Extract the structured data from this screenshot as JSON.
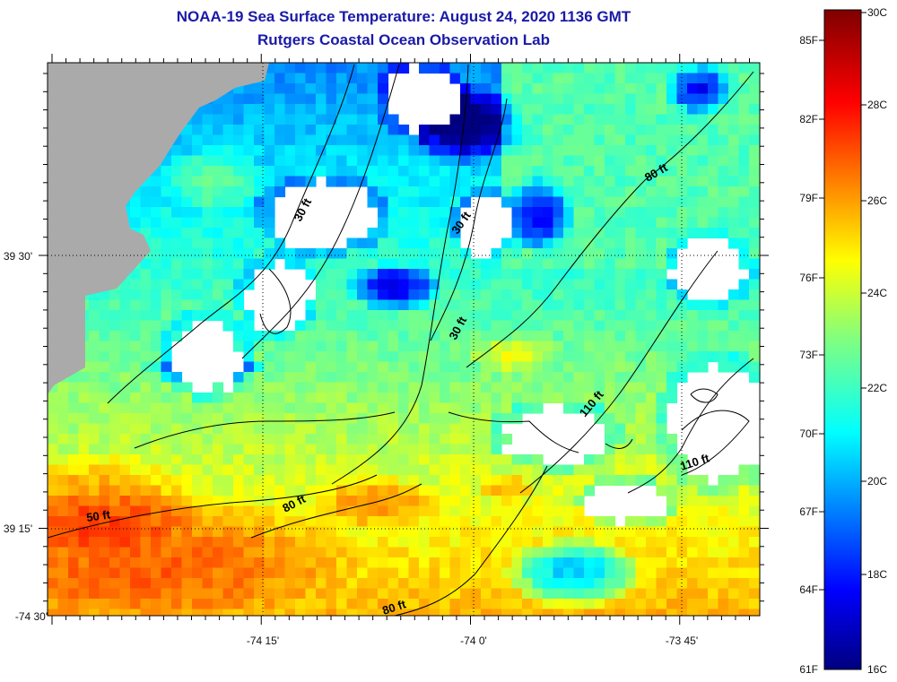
{
  "title_line1": "NOAA-19 Sea Surface Temperature:  August 24, 2020 1136 GMT",
  "title_line2": "Rutgers Coastal Ocean Observation Lab",
  "chart_data": {
    "type": "heatmap",
    "x_ticks": [
      "-74 30'",
      "-74 15'",
      "-74 0'",
      "-73 45'"
    ],
    "y_ticks": [
      "39 30'",
      "39 15'"
    ],
    "contours": [
      "30 ft",
      "30 ft",
      "30 ft",
      "80 ft",
      "110 ft",
      "110 ft",
      "80 ft",
      "50 ft",
      "80 ft"
    ],
    "colorbar": {
      "celsius": [
        "30C",
        "28C",
        "26C",
        "24C",
        "22C",
        "20C",
        "18C",
        "16C"
      ],
      "fahrenheit": [
        "85F",
        "82F",
        "79F",
        "76F",
        "73F",
        "70F",
        "67F",
        "64F",
        "61F"
      ],
      "range_c": [
        16,
        30
      ]
    },
    "colors": {
      "land": "#aaaaaa",
      "cloud": "#ffffff",
      "title": "#1a1aa8"
    }
  }
}
